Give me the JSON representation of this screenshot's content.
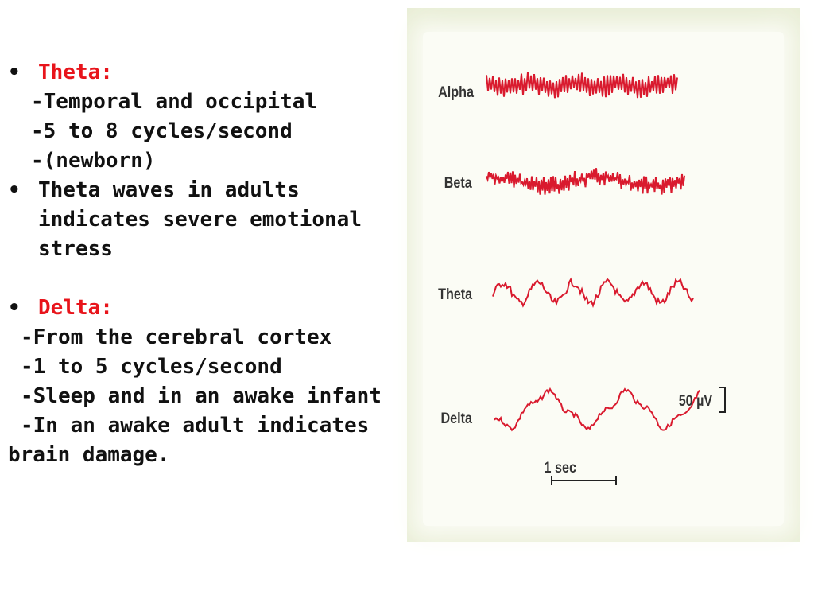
{
  "theta_section": {
    "heading": "Theta:",
    "lines": [
      "-Temporal and occipital",
      "-5 to 8 cycles/second",
      "-(newborn)"
    ],
    "bullet2": [
      "Theta waves in adults",
      "indicates severe emotional",
      "stress"
    ]
  },
  "delta_section": {
    "heading": "Delta:",
    "lines": [
      "-From the cerebral cortex",
      "-1 to 5 cycles/second",
      "-Sleep and in an awake infant",
      "-In an awake adult indicates"
    ],
    "last_line": "brain damage."
  },
  "figure": {
    "waves": [
      {
        "label": "Alpha"
      },
      {
        "label": "Beta"
      },
      {
        "label": "Theta"
      },
      {
        "label": "Delta"
      }
    ],
    "scale_label": "50 µV",
    "time_label": "1 sec",
    "wave_color": "#d91a2e"
  }
}
